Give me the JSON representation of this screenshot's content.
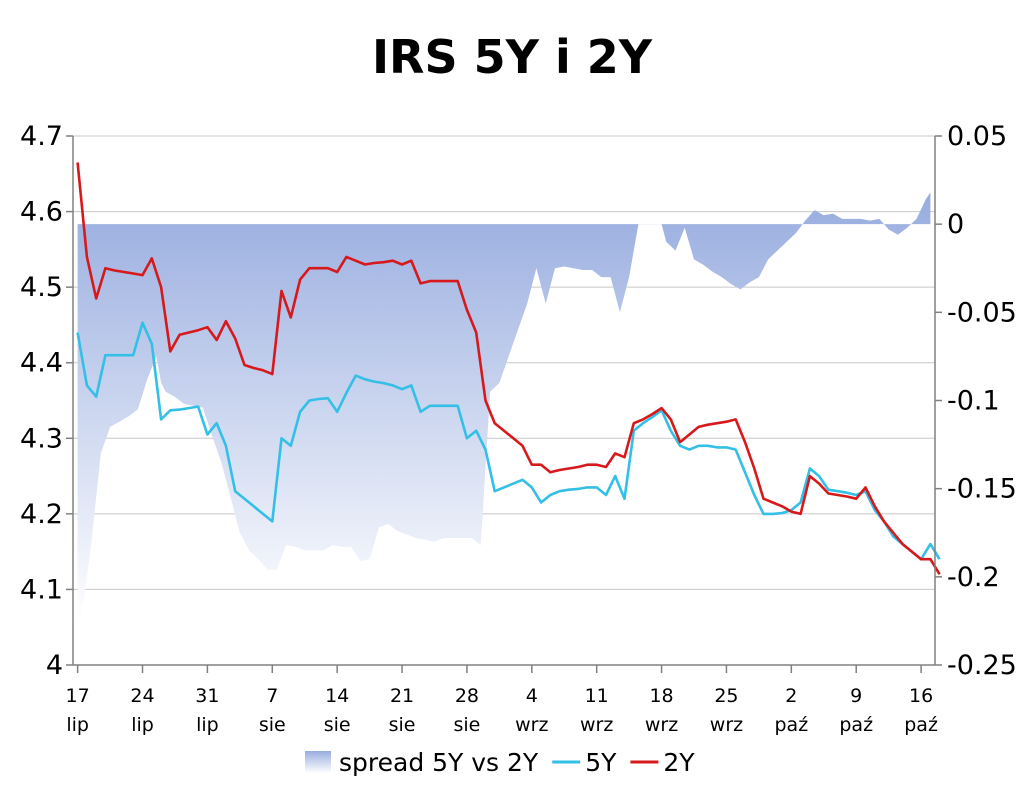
{
  "title": "IRS 5Y i 2Y",
  "chart_data": {
    "type": "line",
    "title": "IRS 5Y i 2Y",
    "y_left": {
      "min": 4.0,
      "max": 4.7,
      "ticks": [
        "4.7",
        "4.6",
        "4.5",
        "4.4",
        "4.3",
        "4.2",
        "4.1",
        "4"
      ]
    },
    "y_right": {
      "min": -0.25,
      "max": 0.05,
      "ticks": [
        "0.05",
        "0",
        "-0.05",
        "-0.1",
        "-0.15",
        "-0.2",
        "-0.25"
      ]
    },
    "x_ticks": [
      {
        "day": "17",
        "month": "lip",
        "t": 0
      },
      {
        "day": "24",
        "month": "lip",
        "t": 7
      },
      {
        "day": "31",
        "month": "lip",
        "t": 14
      },
      {
        "day": "7",
        "month": "sie",
        "t": 21
      },
      {
        "day": "14",
        "month": "sie",
        "t": 28
      },
      {
        "day": "21",
        "month": "sie",
        "t": 35
      },
      {
        "day": "28",
        "month": "sie",
        "t": 42
      },
      {
        "day": "4",
        "month": "wrz",
        "t": 49
      },
      {
        "day": "11",
        "month": "wrz",
        "t": 56
      },
      {
        "day": "18",
        "month": "wrz",
        "t": 63
      },
      {
        "day": "25",
        "month": "wrz",
        "t": 70
      },
      {
        "day": "2",
        "month": "paź",
        "t": 77
      },
      {
        "day": "9",
        "month": "paź",
        "t": 84
      },
      {
        "day": "16",
        "month": "paź",
        "t": 91
      }
    ],
    "x_range": [
      -0.5,
      92.5
    ],
    "grid": true,
    "legend_position": "bottom",
    "series": [
      {
        "name": "spread 5Y vs 2Y",
        "kind": "area",
        "axis": "right",
        "color": "#9fb3e3",
        "points": [
          [
            0,
            -0.227
          ],
          [
            0.7,
            -0.212
          ],
          [
            1.5,
            -0.18
          ],
          [
            2.5,
            -0.13
          ],
          [
            3.5,
            -0.115
          ],
          [
            4.5,
            -0.112
          ],
          [
            5.5,
            -0.109
          ],
          [
            6.5,
            -0.105
          ],
          [
            7.5,
            -0.088
          ],
          [
            8.5,
            -0.075
          ],
          [
            9.0,
            -0.09
          ],
          [
            9.5,
            -0.095
          ],
          [
            10.5,
            -0.098
          ],
          [
            11.5,
            -0.102
          ],
          [
            12.5,
            -0.103
          ],
          [
            13.5,
            -0.104
          ],
          [
            14.5,
            -0.12
          ],
          [
            15.5,
            -0.135
          ],
          [
            16.5,
            -0.155
          ],
          [
            17.5,
            -0.175
          ],
          [
            18.5,
            -0.185
          ],
          [
            19.5,
            -0.19
          ],
          [
            20.5,
            -0.196
          ],
          [
            21.5,
            -0.196
          ],
          [
            22.5,
            -0.182
          ],
          [
            23.5,
            -0.183
          ],
          [
            24.5,
            -0.185
          ],
          [
            25.5,
            -0.185
          ],
          [
            26.5,
            -0.185
          ],
          [
            27.5,
            -0.182
          ],
          [
            28.5,
            -0.183
          ],
          [
            29.5,
            -0.183
          ],
          [
            30.5,
            -0.191
          ],
          [
            31.5,
            -0.19
          ],
          [
            32.5,
            -0.172
          ],
          [
            33.5,
            -0.17
          ],
          [
            34.5,
            -0.174
          ],
          [
            35.5,
            -0.176
          ],
          [
            36.5,
            -0.178
          ],
          [
            37.5,
            -0.179
          ],
          [
            38.5,
            -0.18
          ],
          [
            39.5,
            -0.178
          ],
          [
            40.5,
            -0.178
          ],
          [
            41.5,
            -0.178
          ],
          [
            42.5,
            -0.178
          ],
          [
            43.5,
            -0.182
          ],
          [
            44.5,
            -0.095
          ],
          [
            45.5,
            -0.09
          ],
          [
            46.5,
            -0.075
          ],
          [
            47.5,
            -0.06
          ],
          [
            48.5,
            -0.045
          ],
          [
            49.5,
            -0.025
          ],
          [
            50.5,
            -0.045
          ],
          [
            51.5,
            -0.025
          ],
          [
            52.5,
            -0.024
          ],
          [
            53.5,
            -0.025
          ],
          [
            54.5,
            -0.026
          ],
          [
            55.5,
            -0.026
          ],
          [
            56.5,
            -0.03
          ],
          [
            57.5,
            -0.03
          ],
          [
            58.5,
            -0.05
          ],
          [
            59.5,
            -0.03
          ],
          [
            60.5,
            0.0
          ],
          [
            63.0,
            0.0
          ],
          [
            63.5,
            -0.01
          ],
          [
            64.5,
            -0.015
          ],
          [
            65.5,
            -0.002
          ],
          [
            66.5,
            -0.02
          ],
          [
            67.5,
            -0.023
          ],
          [
            68.5,
            -0.027
          ],
          [
            69.5,
            -0.03
          ],
          [
            70.5,
            -0.034
          ],
          [
            71.5,
            -0.037
          ],
          [
            72.5,
            -0.033
          ],
          [
            73.5,
            -0.03
          ],
          [
            74.5,
            -0.02
          ],
          [
            75.5,
            -0.015
          ],
          [
            76.5,
            -0.01
          ],
          [
            77.5,
            -0.005
          ],
          [
            78.5,
            0.002
          ],
          [
            79.5,
            0.008
          ],
          [
            80.5,
            0.005
          ],
          [
            81.5,
            0.006
          ],
          [
            82.5,
            0.003
          ],
          [
            83.5,
            0.003
          ],
          [
            84.5,
            0.003
          ],
          [
            85.5,
            0.002
          ],
          [
            86.5,
            0.003
          ],
          [
            87.5,
            -0.003
          ],
          [
            88.5,
            -0.006
          ],
          [
            89.5,
            -0.002
          ],
          [
            90.5,
            0.003
          ],
          [
            91.5,
            0.014
          ],
          [
            92.0,
            0.018
          ]
        ]
      },
      {
        "name": "5Y",
        "kind": "line",
        "axis": "left",
        "color": "#33bfe6",
        "points": [
          [
            0,
            4.44
          ],
          [
            1,
            4.37
          ],
          [
            2,
            4.355
          ],
          [
            3,
            4.41
          ],
          [
            4,
            4.41
          ],
          [
            5,
            4.41
          ],
          [
            6,
            4.41
          ],
          [
            7,
            4.453
          ],
          [
            8,
            4.425
          ],
          [
            9,
            4.325
          ],
          [
            10,
            4.337
          ],
          [
            11,
            4.338
          ],
          [
            12,
            4.34
          ],
          [
            13,
            4.342
          ],
          [
            14,
            4.305
          ],
          [
            15,
            4.32
          ],
          [
            16,
            4.29
          ],
          [
            17,
            4.23
          ],
          [
            18,
            4.22
          ],
          [
            19,
            4.21
          ],
          [
            20,
            4.2
          ],
          [
            21,
            4.19
          ],
          [
            22,
            4.3
          ],
          [
            23,
            4.29
          ],
          [
            24,
            4.335
          ],
          [
            25,
            4.35
          ],
          [
            26,
            4.352
          ],
          [
            27,
            4.353
          ],
          [
            28,
            4.335
          ],
          [
            29,
            4.36
          ],
          [
            30,
            4.383
          ],
          [
            31,
            4.378
          ],
          [
            32,
            4.375
          ],
          [
            33,
            4.373
          ],
          [
            34,
            4.37
          ],
          [
            35,
            4.365
          ],
          [
            36,
            4.37
          ],
          [
            37,
            4.335
          ],
          [
            38,
            4.343
          ],
          [
            39,
            4.343
          ],
          [
            40,
            4.343
          ],
          [
            41,
            4.343
          ],
          [
            42,
            4.3
          ],
          [
            43,
            4.31
          ],
          [
            44,
            4.285
          ],
          [
            45,
            4.23
          ],
          [
            46,
            4.235
          ],
          [
            47,
            4.24
          ],
          [
            48,
            4.245
          ],
          [
            49,
            4.235
          ],
          [
            50,
            4.215
          ],
          [
            51,
            4.225
          ],
          [
            52,
            4.23
          ],
          [
            53,
            4.232
          ],
          [
            54,
            4.233
          ],
          [
            55,
            4.235
          ],
          [
            56,
            4.235
          ],
          [
            57,
            4.225
          ],
          [
            58,
            4.25
          ],
          [
            59,
            4.22
          ],
          [
            60,
            4.31
          ],
          [
            61,
            4.32
          ],
          [
            62,
            4.328
          ],
          [
            63,
            4.337
          ],
          [
            64,
            4.31
          ],
          [
            65,
            4.29
          ],
          [
            66,
            4.285
          ],
          [
            67,
            4.29
          ],
          [
            68,
            4.29
          ],
          [
            69,
            4.288
          ],
          [
            70,
            4.288
          ],
          [
            71,
            4.285
          ],
          [
            72,
            4.255
          ],
          [
            73,
            4.225
          ],
          [
            74,
            4.2
          ],
          [
            75,
            4.2
          ],
          [
            76,
            4.201
          ],
          [
            77,
            4.205
          ],
          [
            78,
            4.215
          ],
          [
            79,
            4.26
          ],
          [
            80,
            4.25
          ],
          [
            81,
            4.232
          ],
          [
            82,
            4.23
          ],
          [
            83,
            4.228
          ],
          [
            84,
            4.225
          ],
          [
            85,
            4.23
          ],
          [
            86,
            4.205
          ],
          [
            87,
            4.19
          ],
          [
            88,
            4.17
          ],
          [
            89,
            4.16
          ],
          [
            90,
            4.15
          ],
          [
            91,
            4.14
          ],
          [
            92,
            4.16
          ],
          [
            93,
            4.14
          ]
        ]
      },
      {
        "name": "2Y",
        "kind": "line",
        "axis": "left",
        "color": "#d7191c",
        "points": [
          [
            0,
            4.665
          ],
          [
            1,
            4.54
          ],
          [
            2,
            4.485
          ],
          [
            3,
            4.525
          ],
          [
            4,
            4.522
          ],
          [
            5,
            4.52
          ],
          [
            6,
            4.518
          ],
          [
            7,
            4.516
          ],
          [
            8,
            4.538
          ],
          [
            9,
            4.5
          ],
          [
            10,
            4.415
          ],
          [
            11,
            4.437
          ],
          [
            12,
            4.44
          ],
          [
            13,
            4.443
          ],
          [
            14,
            4.447
          ],
          [
            15,
            4.43
          ],
          [
            16,
            4.455
          ],
          [
            17,
            4.432
          ],
          [
            18,
            4.397
          ],
          [
            19,
            4.393
          ],
          [
            20,
            4.39
          ],
          [
            21,
            4.385
          ],
          [
            22,
            4.495
          ],
          [
            23,
            4.46
          ],
          [
            24,
            4.51
          ],
          [
            25,
            4.525
          ],
          [
            26,
            4.525
          ],
          [
            27,
            4.525
          ],
          [
            28,
            4.52
          ],
          [
            29,
            4.54
          ],
          [
            30,
            4.535
          ],
          [
            31,
            4.53
          ],
          [
            32,
            4.532
          ],
          [
            33,
            4.533
          ],
          [
            34,
            4.535
          ],
          [
            35,
            4.53
          ],
          [
            36,
            4.535
          ],
          [
            37,
            4.505
          ],
          [
            38,
            4.508
          ],
          [
            39,
            4.508
          ],
          [
            40,
            4.508
          ],
          [
            41,
            4.508
          ],
          [
            42,
            4.47
          ],
          [
            43,
            4.44
          ],
          [
            44,
            4.35
          ],
          [
            45,
            4.32
          ],
          [
            46,
            4.31
          ],
          [
            47,
            4.3
          ],
          [
            48,
            4.29
          ],
          [
            49,
            4.265
          ],
          [
            50,
            4.265
          ],
          [
            51,
            4.255
          ],
          [
            52,
            4.258
          ],
          [
            53,
            4.26
          ],
          [
            54,
            4.262
          ],
          [
            55,
            4.265
          ],
          [
            56,
            4.265
          ],
          [
            57,
            4.262
          ],
          [
            58,
            4.28
          ],
          [
            59,
            4.275
          ],
          [
            60,
            4.32
          ],
          [
            61,
            4.325
          ],
          [
            62,
            4.332
          ],
          [
            63,
            4.34
          ],
          [
            64,
            4.325
          ],
          [
            65,
            4.295
          ],
          [
            66,
            4.305
          ],
          [
            67,
            4.315
          ],
          [
            68,
            4.318
          ],
          [
            69,
            4.32
          ],
          [
            70,
            4.322
          ],
          [
            71,
            4.325
          ],
          [
            72,
            4.295
          ],
          [
            73,
            4.26
          ],
          [
            74,
            4.22
          ],
          [
            75,
            4.215
          ],
          [
            76,
            4.21
          ],
          [
            77,
            4.203
          ],
          [
            78,
            4.2
          ],
          [
            79,
            4.25
          ],
          [
            80,
            4.24
          ],
          [
            81,
            4.227
          ],
          [
            82,
            4.225
          ],
          [
            83,
            4.223
          ],
          [
            84,
            4.22
          ],
          [
            85,
            4.235
          ],
          [
            86,
            4.21
          ],
          [
            87,
            4.19
          ],
          [
            88,
            4.175
          ],
          [
            89,
            4.16
          ],
          [
            90,
            4.15
          ],
          [
            91,
            4.14
          ],
          [
            92,
            4.14
          ],
          [
            93,
            4.12
          ]
        ]
      }
    ]
  }
}
